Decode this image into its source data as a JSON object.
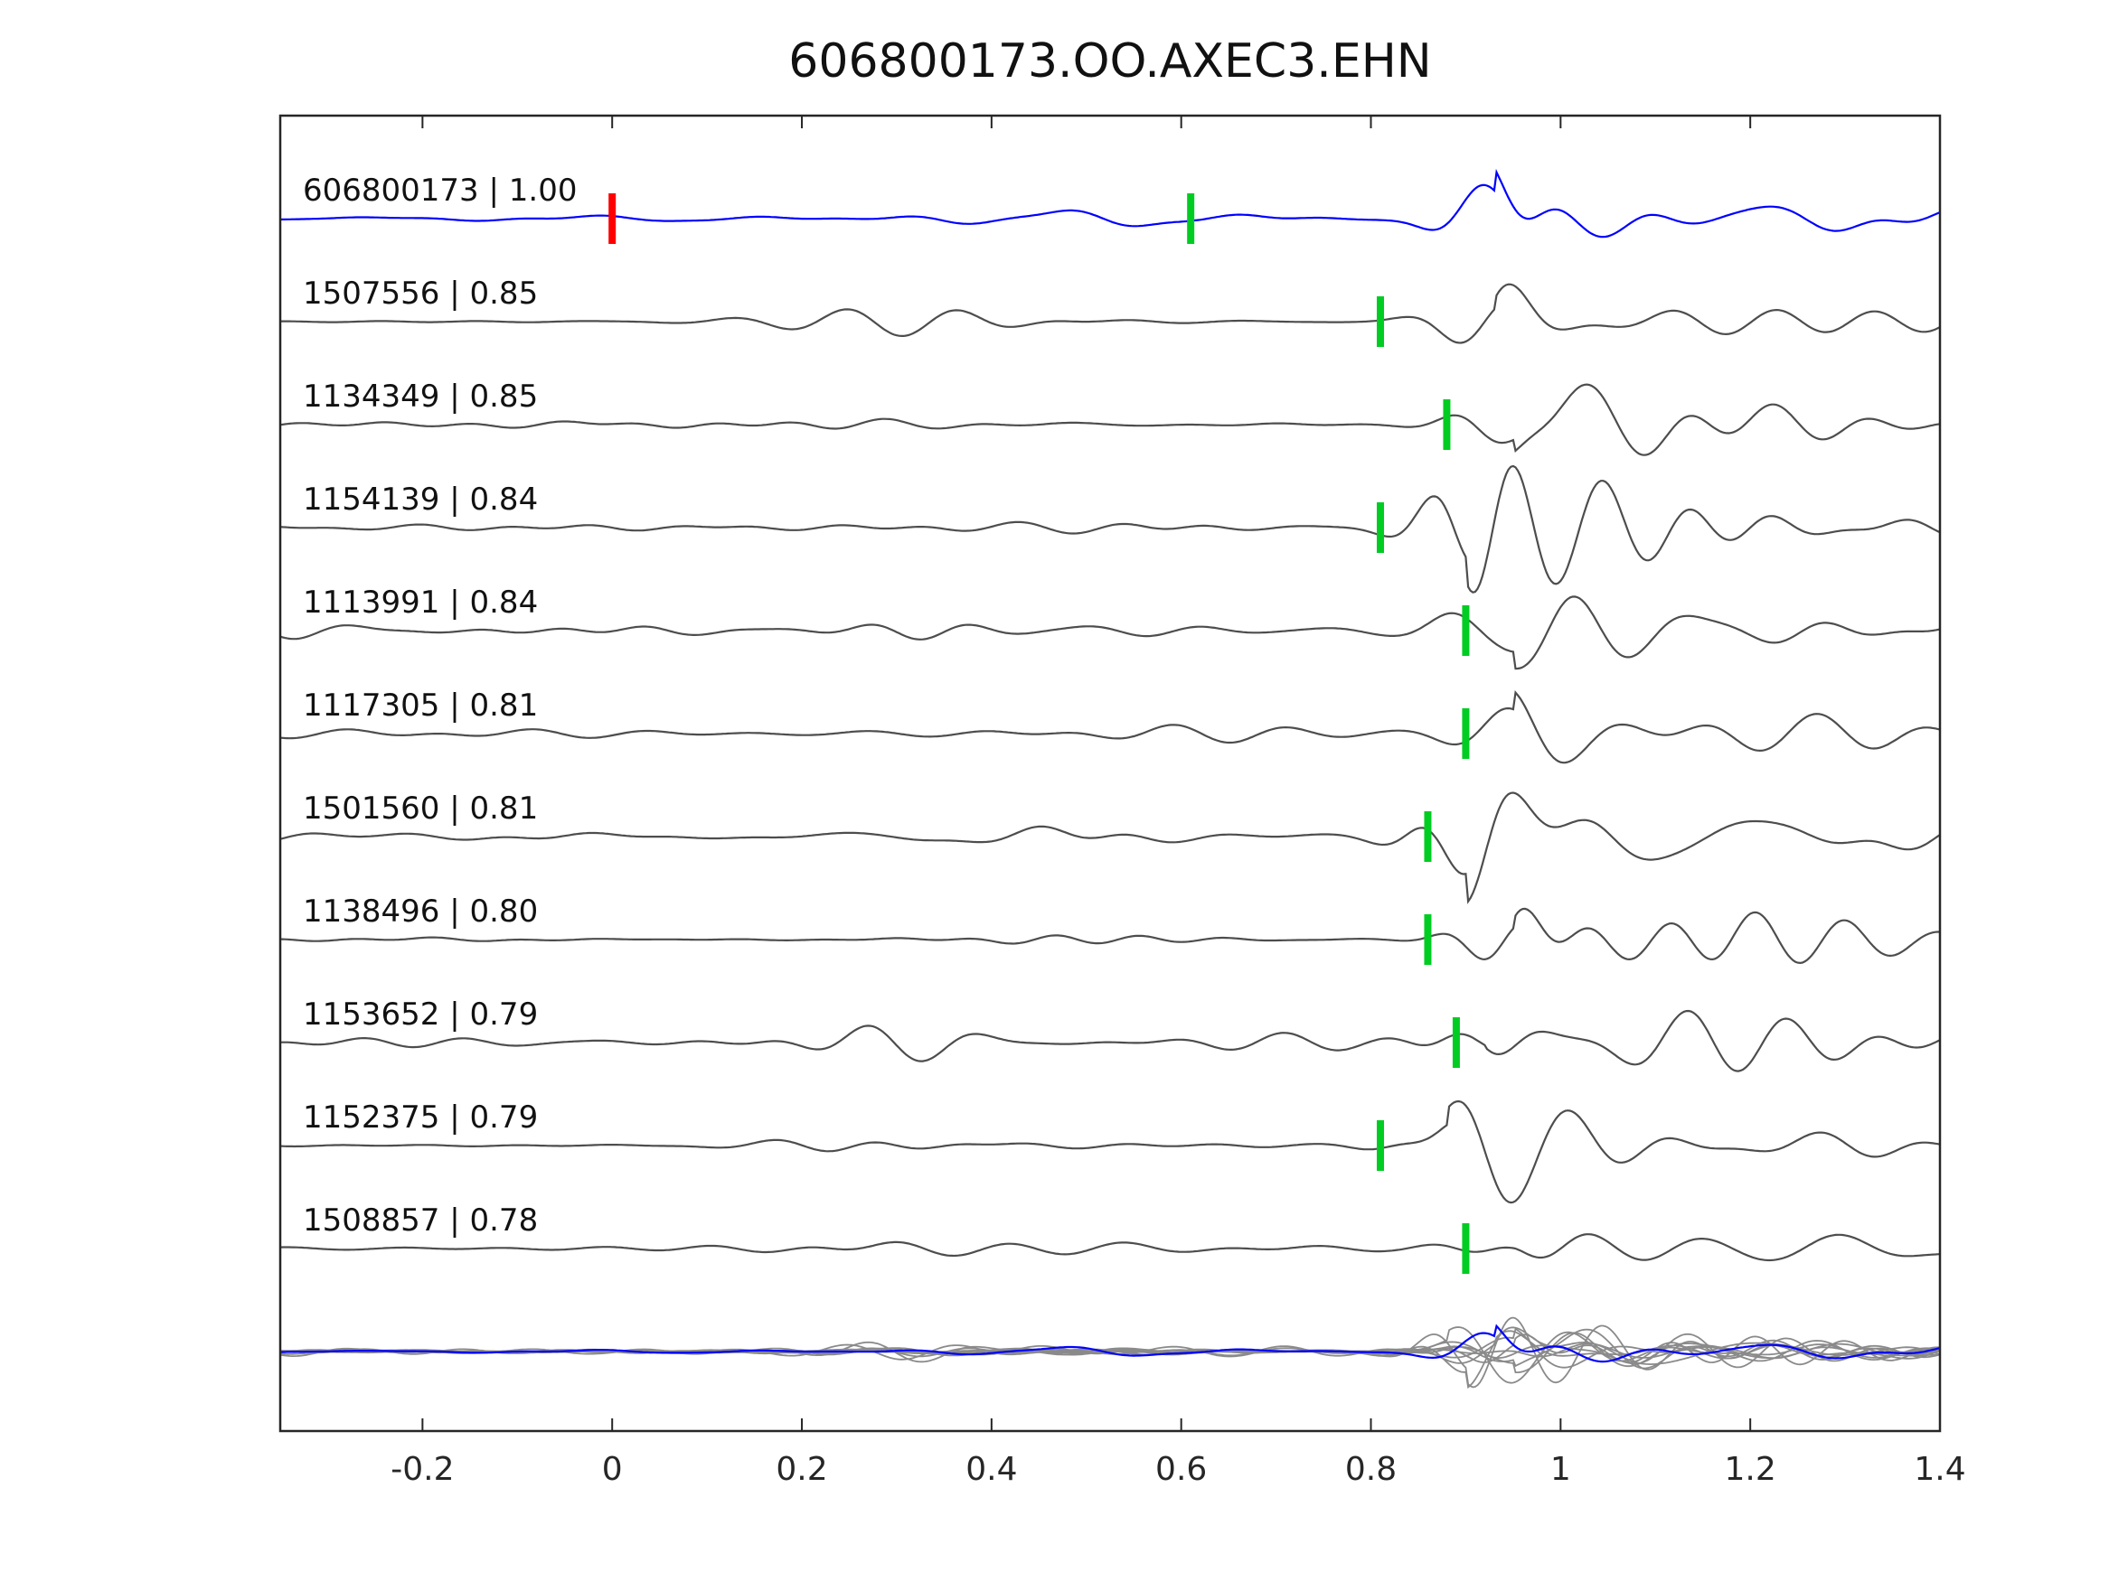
{
  "title": "606800173.OO.AXEC3.EHN",
  "chart_data": {
    "type": "line",
    "subtype": "seismic-waveform-stack",
    "title": "606800173.OO.AXEC3.EHN",
    "xlim": [
      -0.35,
      1.4
    ],
    "x_ticks": [
      {
        "value": -0.2,
        "label": "-0.2"
      },
      {
        "value": 0,
        "label": "0"
      },
      {
        "value": 0.2,
        "label": "0.2"
      },
      {
        "value": 0.4,
        "label": "0.4"
      },
      {
        "value": 0.6,
        "label": "0.6"
      },
      {
        "value": 0.8,
        "label": "0.8"
      },
      {
        "value": 1,
        "label": "1"
      },
      {
        "value": 1.2,
        "label": "1.2"
      },
      {
        "value": 1.4,
        "label": "1.4"
      }
    ],
    "colors": {
      "template": "#0000ff",
      "detection": "#4d4d4d",
      "overlay": "#8a8a8a",
      "pick_red": "#ff0000",
      "pick_green": "#00cc22",
      "axis": "#262626",
      "text": "#111111"
    },
    "traces": [
      {
        "id": "606800173",
        "cc": "1.00",
        "label": "606800173 | 1.00",
        "is_template": true,
        "picks": [
          {
            "time": 0.0,
            "color": "pick_red"
          },
          {
            "time": 0.61,
            "color": "pick_green"
          }
        ],
        "render": {
          "seed": 101,
          "noise": 5,
          "burst_time": 0.55,
          "burst_amp": 7,
          "arrival": 0.93,
          "amp": 55
        }
      },
      {
        "id": "1507556",
        "cc": "0.85",
        "label": "1507556 | 0.85",
        "is_template": false,
        "picks": [
          {
            "time": 0.81,
            "color": "pick_green"
          }
        ],
        "render": {
          "seed": 202,
          "noise": 3,
          "burst_time": 0.35,
          "burst_amp": 10,
          "arrival": 0.93,
          "amp": 62
        }
      },
      {
        "id": "1134349",
        "cc": "0.85",
        "label": "1134349 | 0.85",
        "is_template": false,
        "picks": [
          {
            "time": 0.88,
            "color": "pick_green"
          }
        ],
        "render": {
          "seed": 303,
          "noise": 6,
          "burst_time": 0.1,
          "burst_amp": 5,
          "arrival": 0.95,
          "amp": 68
        }
      },
      {
        "id": "1154139",
        "cc": "0.84",
        "label": "1154139 | 0.84",
        "is_template": false,
        "picks": [
          {
            "time": 0.81,
            "color": "pick_green"
          }
        ],
        "render": {
          "seed": 404,
          "noise": 5,
          "burst_time": 0.5,
          "burst_amp": 7,
          "arrival": 0.9,
          "amp": 60
        }
      },
      {
        "id": "1113991",
        "cc": "0.84",
        "label": "1113991 | 0.84",
        "is_template": false,
        "picks": [
          {
            "time": 0.9,
            "color": "pick_green"
          }
        ],
        "render": {
          "seed": 505,
          "noise": 11,
          "burst_time": 0.35,
          "burst_amp": 9,
          "arrival": 0.95,
          "amp": 52
        }
      },
      {
        "id": "1117305",
        "cc": "0.81",
        "label": "1117305 | 0.81",
        "is_template": false,
        "picks": [
          {
            "time": 0.9,
            "color": "pick_green"
          }
        ],
        "render": {
          "seed": 606,
          "noise": 10,
          "burst_time": 0.6,
          "burst_amp": 6,
          "arrival": 0.95,
          "amp": 58
        }
      },
      {
        "id": "1501560",
        "cc": "0.81",
        "label": "1501560 | 0.81",
        "is_template": false,
        "picks": [
          {
            "time": 0.86,
            "color": "pick_green"
          }
        ],
        "render": {
          "seed": 707,
          "noise": 7,
          "burst_time": 0.45,
          "burst_amp": 7,
          "arrival": 0.9,
          "amp": 58
        }
      },
      {
        "id": "1138496",
        "cc": "0.80",
        "label": "1138496 | 0.80",
        "is_template": false,
        "picks": [
          {
            "time": 0.86,
            "color": "pick_green"
          }
        ],
        "render": {
          "seed": 808,
          "noise": 4,
          "burst_time": 0.5,
          "burst_amp": 6,
          "arrival": 0.95,
          "amp": 66
        }
      },
      {
        "id": "1153652",
        "cc": "0.79",
        "label": "1153652 | 0.79",
        "is_template": false,
        "picks": [
          {
            "time": 0.89,
            "color": "pick_green"
          }
        ],
        "render": {
          "seed": 909,
          "noise": 11,
          "burst_time": 0.33,
          "burst_amp": 13,
          "arrival": 0.92,
          "amp": 56
        }
      },
      {
        "id": "1152375",
        "cc": "0.79",
        "label": "1152375 | 0.79",
        "is_template": false,
        "picks": [
          {
            "time": 0.81,
            "color": "pick_green"
          }
        ],
        "render": {
          "seed": 1010,
          "noise": 4,
          "burst_time": 0.3,
          "burst_amp": 9,
          "arrival": 0.88,
          "amp": 62
        }
      },
      {
        "id": "1508857",
        "cc": "0.78",
        "label": "1508857 | 0.78",
        "is_template": false,
        "picks": [
          {
            "time": 0.9,
            "color": "pick_green"
          }
        ],
        "render": {
          "seed": 1111,
          "noise": 5,
          "burst_time": 0.35,
          "burst_amp": 15,
          "arrival": 0.95,
          "amp": 58
        }
      }
    ],
    "overlay_row": {
      "scale": 0.55
    }
  }
}
